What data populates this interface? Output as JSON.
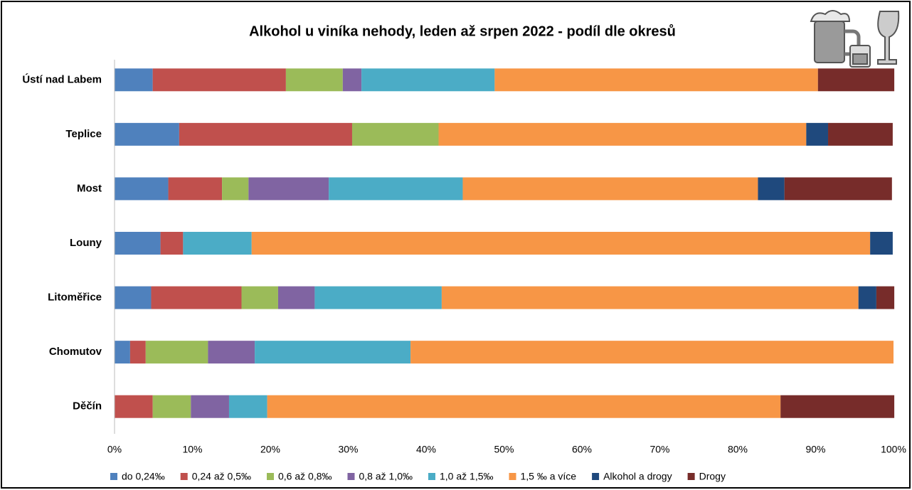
{
  "chart_data": {
    "type": "stacked-bar-horizontal",
    "title": "Alkohol u viníka nehody, leden až srpen 2022 - podíl dle okresů",
    "categories": [
      "Ústí nad Labem",
      "Teplice",
      "Most",
      "Louny",
      "Litoměřice",
      "Chomutov",
      "Děčín"
    ],
    "series": [
      {
        "name": "do 0,24‰",
        "color": "#4f81bd",
        "values": [
          4.9,
          8.3,
          6.9,
          5.9,
          4.7,
          2,
          0
        ]
      },
      {
        "name": "0,24 až 0,5‰",
        "color": "#c0504d",
        "values": [
          17.1,
          22.2,
          6.9,
          2.9,
          11.6,
          2,
          4.9
        ]
      },
      {
        "name": "0,6 až 0,8‰",
        "color": "#9bbb59",
        "values": [
          7.3,
          11.1,
          3.4,
          0,
          4.7,
          8,
          4.9
        ]
      },
      {
        "name": "0,8 až 1,0‰",
        "color": "#8064a2",
        "values": [
          2.4,
          0,
          10.3,
          0,
          4.7,
          6,
          4.9
        ]
      },
      {
        "name": "1,0 až 1,5‰",
        "color": "#4bacc6",
        "values": [
          17.1,
          0,
          17.2,
          8.8,
          16.3,
          20,
          4.9
        ]
      },
      {
        "name": "1,5 ‰ a více",
        "color": "#f79646",
        "values": [
          41.5,
          47.2,
          37.9,
          79.4,
          53.5,
          62,
          65.9
        ]
      },
      {
        "name": "Alkohol a drogy",
        "color": "#1f497d",
        "values": [
          0,
          2.8,
          3.4,
          2.9,
          2.3,
          0,
          0
        ]
      },
      {
        "name": "Drogy",
        "color": "#772c2a",
        "values": [
          9.8,
          8.3,
          13.8,
          0,
          2.3,
          0,
          14.6
        ]
      }
    ],
    "xlim": [
      0,
      100
    ],
    "xticks": [
      {
        "value": 0,
        "label": "0%"
      },
      {
        "value": 10,
        "label": "10%"
      },
      {
        "value": 20,
        "label": "20%"
      },
      {
        "value": 30,
        "label": "30%"
      },
      {
        "value": 40,
        "label": "40%"
      },
      {
        "value": 50,
        "label": "50%"
      },
      {
        "value": 60,
        "label": "60%"
      },
      {
        "value": 70,
        "label": "70%"
      },
      {
        "value": 80,
        "label": "80%"
      },
      {
        "value": 90,
        "label": "90%"
      },
      {
        "value": 100,
        "label": "100%"
      }
    ],
    "grid": false,
    "legend": "bottom"
  }
}
